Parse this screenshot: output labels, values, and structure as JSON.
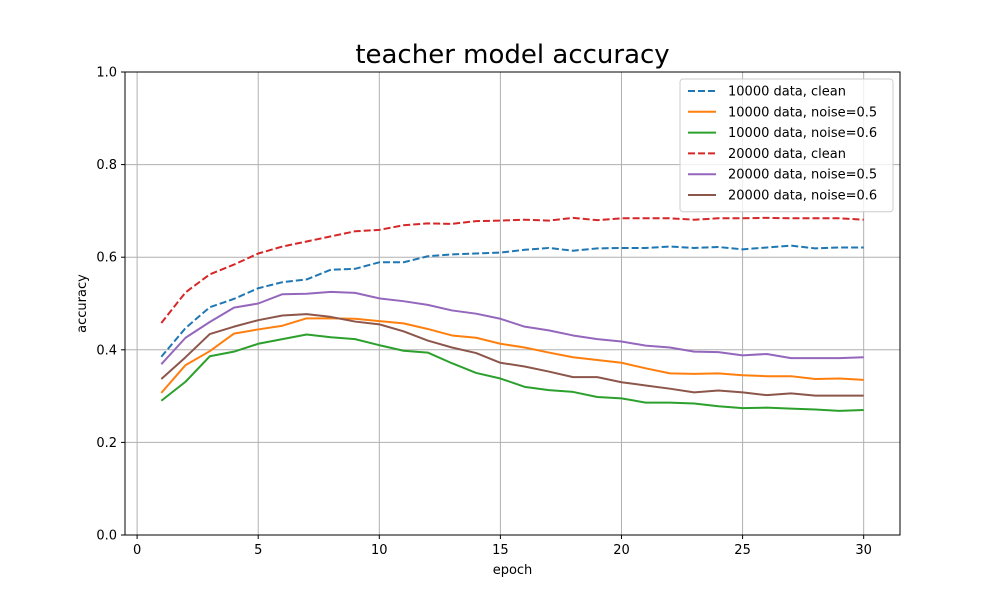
{
  "chart_data": {
    "type": "line",
    "title": "teacher model accuracy",
    "xlabel": "epoch",
    "ylabel": "accuracy",
    "xlim": [
      -0.5,
      31.5
    ],
    "ylim": [
      0.0,
      1.0
    ],
    "xticks": [
      0,
      5,
      10,
      15,
      20,
      25,
      30
    ],
    "yticks": [
      0.0,
      0.2,
      0.4,
      0.6,
      0.8,
      1.0
    ],
    "xtick_labels": [
      "0",
      "5",
      "10",
      "15",
      "20",
      "25",
      "30"
    ],
    "ytick_labels": [
      "0.0",
      "0.2",
      "0.4",
      "0.6",
      "0.8",
      "1.0"
    ],
    "grid": true,
    "legend_position": "top-right",
    "x": [
      1,
      2,
      3,
      4,
      5,
      6,
      7,
      8,
      9,
      10,
      11,
      12,
      13,
      14,
      15,
      16,
      17,
      18,
      19,
      20,
      21,
      22,
      23,
      24,
      25,
      26,
      27,
      28,
      29,
      30
    ],
    "series": [
      {
        "name": "10000 data, clean",
        "color": "#1f77b4",
        "dash": "dashed",
        "values": [
          0.385,
          0.447,
          0.492,
          0.51,
          0.533,
          0.546,
          0.552,
          0.573,
          0.575,
          0.589,
          0.589,
          0.602,
          0.606,
          0.608,
          0.61,
          0.616,
          0.62,
          0.614,
          0.619,
          0.62,
          0.62,
          0.623,
          0.62,
          0.622,
          0.617,
          0.621,
          0.625,
          0.619,
          0.621,
          0.621
        ]
      },
      {
        "name": "10000 data, noise=0.5",
        "color": "#ff7f0e",
        "dash": "solid",
        "values": [
          0.307,
          0.367,
          0.397,
          0.435,
          0.444,
          0.452,
          0.468,
          0.468,
          0.467,
          0.462,
          0.457,
          0.445,
          0.431,
          0.426,
          0.413,
          0.405,
          0.394,
          0.384,
          0.378,
          0.372,
          0.36,
          0.349,
          0.348,
          0.349,
          0.345,
          0.343,
          0.343,
          0.337,
          0.338,
          0.335
        ]
      },
      {
        "name": "10000 data, noise=0.6",
        "color": "#2ca02c",
        "dash": "solid",
        "values": [
          0.29,
          0.331,
          0.386,
          0.396,
          0.413,
          0.423,
          0.433,
          0.427,
          0.423,
          0.41,
          0.398,
          0.394,
          0.371,
          0.35,
          0.338,
          0.32,
          0.313,
          0.309,
          0.298,
          0.295,
          0.286,
          0.286,
          0.284,
          0.278,
          0.274,
          0.275,
          0.273,
          0.271,
          0.268,
          0.27
        ]
      },
      {
        "name": "20000 data, clean",
        "color": "#d62728",
        "dash": "dashed",
        "values": [
          0.458,
          0.524,
          0.563,
          0.584,
          0.608,
          0.623,
          0.634,
          0.645,
          0.656,
          0.659,
          0.669,
          0.673,
          0.672,
          0.678,
          0.679,
          0.681,
          0.679,
          0.685,
          0.68,
          0.684,
          0.684,
          0.684,
          0.681,
          0.684,
          0.684,
          0.685,
          0.684,
          0.684,
          0.684,
          0.681
        ]
      },
      {
        "name": "20000 data, noise=0.5",
        "color": "#9467bd",
        "dash": "solid",
        "values": [
          0.369,
          0.426,
          0.46,
          0.491,
          0.5,
          0.52,
          0.521,
          0.525,
          0.523,
          0.511,
          0.505,
          0.497,
          0.485,
          0.478,
          0.467,
          0.45,
          0.442,
          0.431,
          0.423,
          0.418,
          0.409,
          0.405,
          0.396,
          0.395,
          0.388,
          0.391,
          0.382,
          0.382,
          0.382,
          0.384
        ]
      },
      {
        "name": "20000 data, noise=0.6",
        "color": "#8c564b",
        "dash": "solid",
        "values": [
          0.337,
          0.384,
          0.434,
          0.45,
          0.464,
          0.474,
          0.477,
          0.471,
          0.461,
          0.455,
          0.44,
          0.42,
          0.405,
          0.393,
          0.372,
          0.364,
          0.353,
          0.341,
          0.341,
          0.33,
          0.323,
          0.316,
          0.308,
          0.312,
          0.308,
          0.302,
          0.306,
          0.301,
          0.301,
          0.301
        ]
      }
    ]
  }
}
